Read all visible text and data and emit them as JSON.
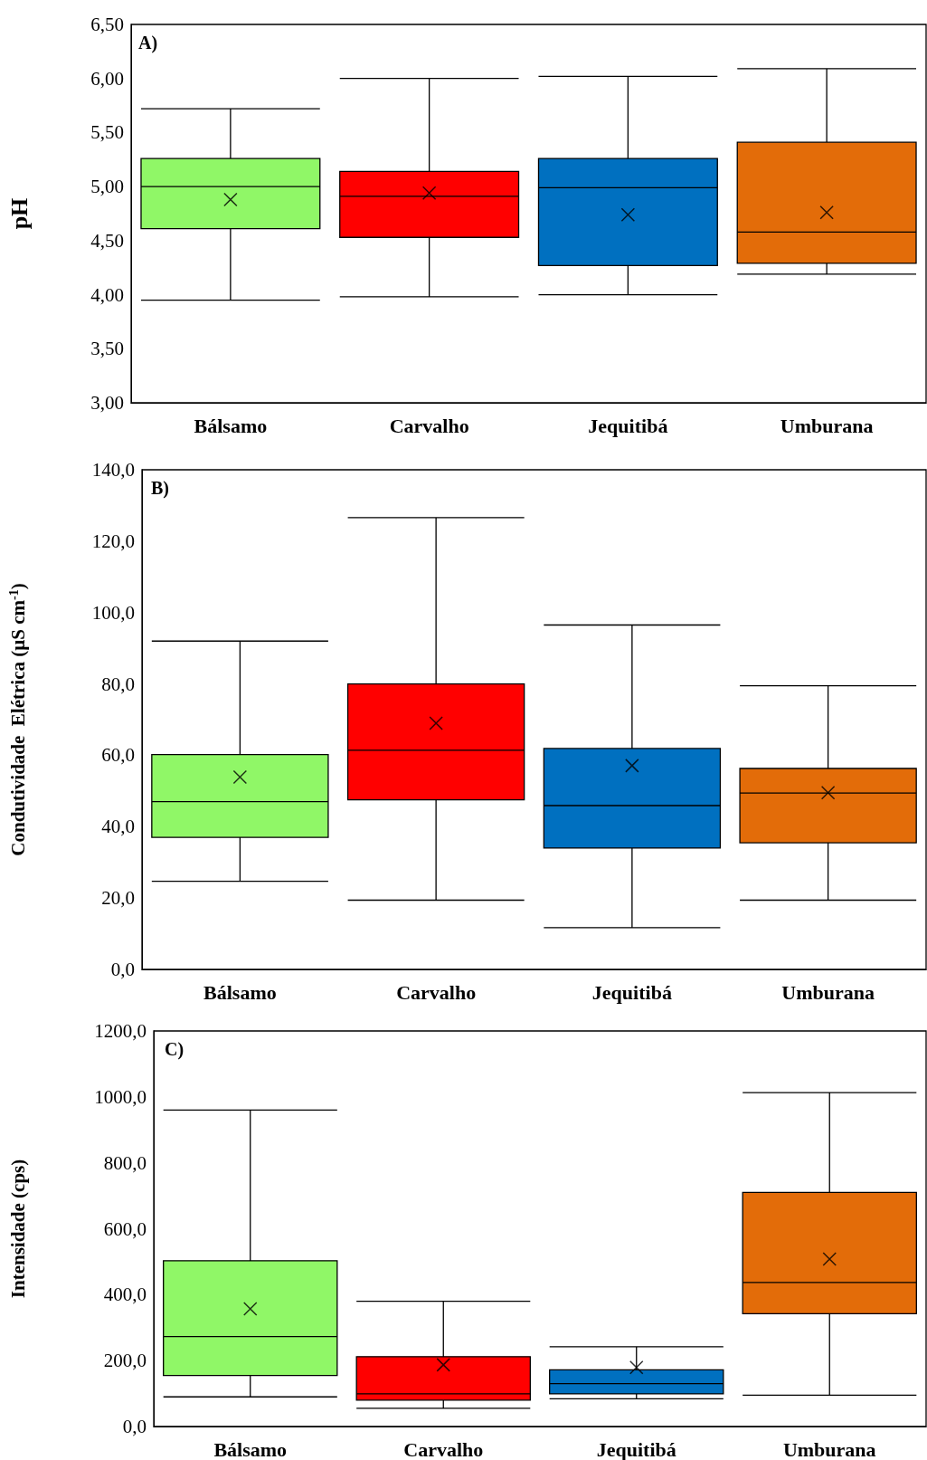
{
  "chart_data": [
    {
      "type": "box",
      "ylabel": "pH",
      "annotations": [
        "A)"
      ],
      "categories": [
        "Bálsamo",
        "Carvalho",
        "Jequitibá",
        "Umburana"
      ],
      "colors": [
        "#90f767",
        "#ff0000",
        "#0070c0",
        "#e36c09"
      ],
      "boxes": [
        {
          "low": 3.95,
          "q1": 4.61,
          "median": 5.0,
          "q3": 5.26,
          "high": 5.72,
          "mean": 4.88
        },
        {
          "low": 3.98,
          "q1": 4.53,
          "median": 4.91,
          "q3": 5.14,
          "high": 6.0,
          "mean": 4.94
        },
        {
          "low": 4.0,
          "q1": 4.27,
          "median": 4.99,
          "q3": 5.26,
          "high": 6.02,
          "mean": 4.74
        },
        {
          "low": 4.19,
          "q1": 4.29,
          "median": 4.58,
          "q3": 5.41,
          "high": 6.09,
          "mean": 4.76
        }
      ],
      "ylim": [
        3,
        6.5
      ],
      "yticks": [
        {
          "value": 3,
          "label": "3,00"
        },
        {
          "value": 3.5,
          "label": "3,50"
        },
        {
          "value": 4,
          "label": "4,00"
        },
        {
          "value": 4.5,
          "label": "4,50"
        },
        {
          "value": 5,
          "label": "5,00"
        },
        {
          "value": 5.5,
          "label": "5,50"
        },
        {
          "value": 6,
          "label": "6,00"
        },
        {
          "value": 6.5,
          "label": "6,50"
        }
      ],
      "marker": "cross"
    },
    {
      "type": "box",
      "ylabel": "Condutividade  Elétrica (µS cm$^{-1}$)",
      "annotations": [
        "B)"
      ],
      "categories": [
        "Bálsamo",
        "Carvalho",
        "Jequitibá",
        "Umburana"
      ],
      "colors": [
        "#90f767",
        "#ff0000",
        "#0070c0",
        "#e36c09"
      ],
      "boxes": [
        {
          "low": 24.7,
          "q1": 37.0,
          "median": 47.0,
          "q3": 60.2,
          "high": 92.0,
          "mean": 53.9
        },
        {
          "low": 19.4,
          "q1": 47.5,
          "median": 61.4,
          "q3": 80.0,
          "high": 126.6,
          "mean": 69.0
        },
        {
          "low": 11.7,
          "q1": 34.0,
          "median": 45.9,
          "q3": 61.9,
          "high": 96.5,
          "mean": 57.1
        },
        {
          "low": 19.4,
          "q1": 35.5,
          "median": 49.4,
          "q3": 56.3,
          "high": 79.5,
          "mean": 49.5
        }
      ],
      "ylim": [
        0,
        140
      ],
      "yticks": [
        {
          "value": 0,
          "label": "0,0"
        },
        {
          "value": 20,
          "label": "20,0"
        },
        {
          "value": 40,
          "label": "40,0"
        },
        {
          "value": 60,
          "label": "60,0"
        },
        {
          "value": 80,
          "label": "80,0"
        },
        {
          "value": 100,
          "label": "100,0"
        },
        {
          "value": 120,
          "label": "120,0"
        },
        {
          "value": 140,
          "label": "140,0"
        }
      ],
      "marker": "cross"
    },
    {
      "type": "box",
      "ylabel": "Intensidade (cps)",
      "annotations": [
        "C)"
      ],
      "categories": [
        "Bálsamo",
        "Carvalho",
        "Jequitibá",
        "Umburana"
      ],
      "colors": [
        "#90f767",
        "#ff0000",
        "#0070c0",
        "#e36c09"
      ],
      "boxes": [
        {
          "low": 90,
          "q1": 155,
          "median": 273,
          "q3": 503,
          "high": 960,
          "mean": 357
        },
        {
          "low": 55,
          "q1": 80,
          "median": 99,
          "q3": 212,
          "high": 380,
          "mean": 187
        },
        {
          "low": 84,
          "q1": 99,
          "median": 130,
          "q3": 172,
          "high": 242,
          "mean": 179
        },
        {
          "low": 95,
          "q1": 342,
          "median": 437,
          "q3": 710,
          "high": 1013,
          "mean": 508
        }
      ],
      "ylim": [
        0,
        1200
      ],
      "yticks": [
        {
          "value": 0,
          "label": "0,0"
        },
        {
          "value": 200,
          "label": "200,0"
        },
        {
          "value": 400,
          "label": "400,0"
        },
        {
          "value": 600,
          "label": "600,0"
        },
        {
          "value": 800,
          "label": "800,0"
        },
        {
          "value": 1000,
          "label": "1000,0"
        },
        {
          "value": 1200,
          "label": "1200,0"
        }
      ],
      "marker": "cross"
    }
  ]
}
